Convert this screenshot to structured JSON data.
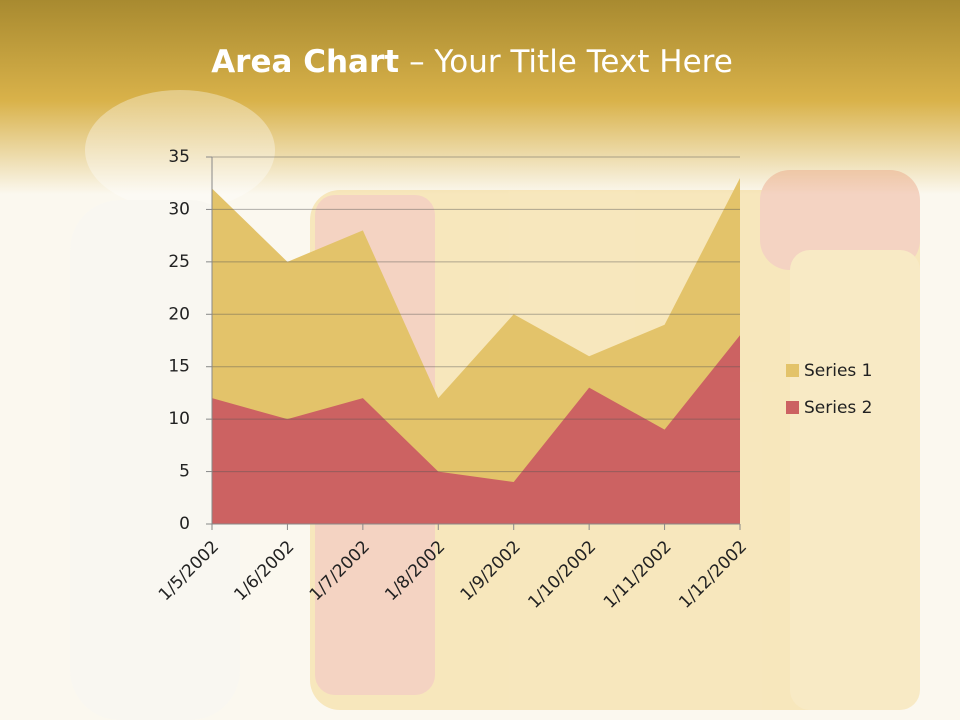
{
  "chart_data": {
    "type": "area",
    "title_bold": "Area Chart",
    "title_rest": "– Your Title Text Here",
    "categories": [
      "1/5/2002",
      "1/6/2002",
      "1/7/2002",
      "1/8/2002",
      "1/9/2002",
      "1/10/2002",
      "1/11/2002",
      "1/12/2002"
    ],
    "series": [
      {
        "name": "Series 1",
        "color": "#e3c36a",
        "values": [
          32,
          25,
          28,
          12,
          20,
          16,
          19,
          33
        ]
      },
      {
        "name": "Series 2",
        "color": "#cc6262",
        "values": [
          12,
          10,
          12,
          5,
          4,
          13,
          9,
          18
        ]
      }
    ],
    "stacked": false,
    "ylim": [
      0,
      35
    ],
    "yticks": [
      0,
      5,
      10,
      15,
      20,
      25,
      30,
      35
    ],
    "grid": true,
    "legend": "right"
  }
}
